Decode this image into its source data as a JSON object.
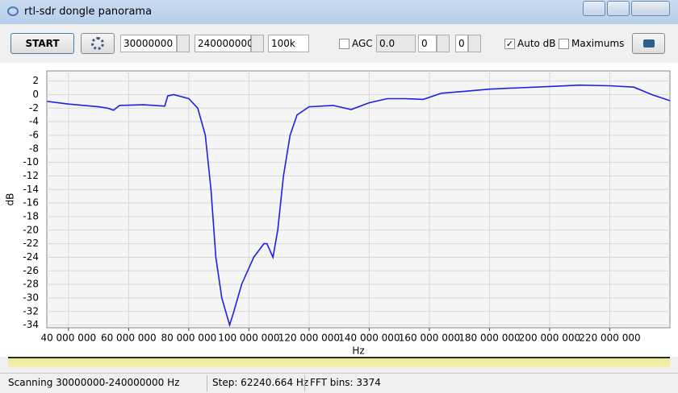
{
  "window": {
    "title": "rtl-sdr dongle panorama"
  },
  "toolbar": {
    "start": "START",
    "start_freq": "30000000",
    "end_freq": "240000000",
    "step": "100k",
    "agc": "AGC",
    "agc_checked": false,
    "agc_gain": "0.0",
    "gain1": "0",
    "gain2": "0",
    "auto_db": "Auto dB",
    "auto_db_checked": true,
    "maximums": "Maximums",
    "maximums_checked": false
  },
  "chart_data": {
    "type": "line",
    "x_label": "Hz",
    "y_label": "dB",
    "color": "#1f1fe8",
    "grid": true,
    "x": [
      33000000,
      40000000,
      50000000,
      53000000,
      55000000,
      57000000,
      65000000,
      72000000,
      73000000,
      75000000,
      80000000,
      83000000,
      85500000,
      87400000,
      89000000,
      91000000,
      93600000,
      95000000,
      97600000,
      101600000,
      105000000,
      106000000,
      108000000,
      109600000,
      111500000,
      113700000,
      116000000,
      120000000,
      128000000,
      134000000,
      140000000,
      146000000,
      152000000,
      158000000,
      164000000,
      172000000,
      180000000,
      190000000,
      200000000,
      210000000,
      220000000,
      228000000,
      234000000,
      240000000
    ],
    "values": [
      -1.0,
      -1.4,
      -1.8,
      -2.0,
      -2.3,
      -1.6,
      -1.5,
      -1.7,
      -0.2,
      0.0,
      -0.6,
      -2.0,
      -6,
      -14,
      -24,
      -30,
      -34,
      -32,
      -28,
      -24,
      -22,
      -22,
      -24,
      -20,
      -12,
      -6,
      -3,
      -1.8,
      -1.6,
      -2.2,
      -1.2,
      -0.6,
      -0.6,
      -0.7,
      0.2,
      0.5,
      0.8,
      1.0,
      1.2,
      1.4,
      1.3,
      1.1,
      0.0,
      -0.9
    ],
    "xlim": [
      32800000,
      240000000
    ],
    "xticks": [
      {
        "value": 40000000,
        "label": "40 000 000"
      },
      {
        "value": 60000000,
        "label": "60 000 000"
      },
      {
        "value": 80000000,
        "label": "80 000 000"
      },
      {
        "value": 100000000,
        "label": "100 000 000"
      },
      {
        "value": 120000000,
        "label": "120 000 000"
      },
      {
        "value": 140000000,
        "label": "140 000 000"
      },
      {
        "value": 160000000,
        "label": "160 000 000"
      },
      {
        "value": 180000000,
        "label": "180 000 000"
      },
      {
        "value": 200000000,
        "label": "200 000 000"
      },
      {
        "value": 220000000,
        "label": "220 000 000"
      }
    ],
    "ylim": [
      -34.4,
      3.5
    ],
    "yticks": [
      2,
      0,
      -2,
      -4,
      -6,
      -8,
      -10,
      -12,
      -14,
      -16,
      -18,
      -20,
      -22,
      -24,
      -26,
      -28,
      -30,
      -32,
      -34
    ]
  },
  "status": {
    "scanning": "Scanning 30000000-240000000 Hz",
    "step": "Step: 62240.664 Hz",
    "fft_bins": "FFT bins: 3374"
  }
}
